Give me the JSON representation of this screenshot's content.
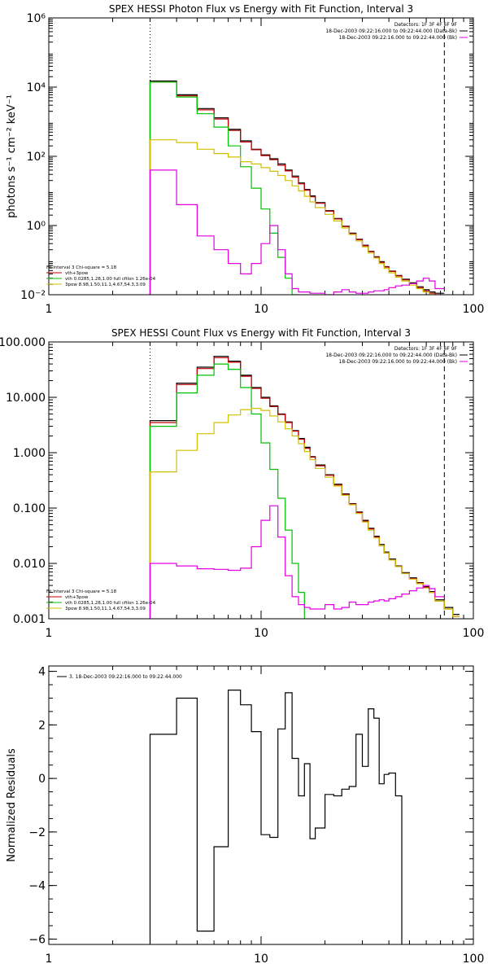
{
  "chart_data": [
    {
      "type": "line",
      "title": "SPEX HESSI Photon Flux vs Energy with Fit Function, Interval 3",
      "xlabel": "",
      "ylabel": "photons s⁻¹ cm⁻² keV⁻¹",
      "xscale": "log",
      "yscale": "log",
      "xlim": [
        1,
        100
      ],
      "ylim": [
        0.01,
        1000000
      ],
      "xticks": [
        {
          "v": 1,
          "label": "1"
        },
        {
          "v": 10,
          "label": "10"
        },
        {
          "v": 100,
          "label": "100"
        }
      ],
      "yticks": [
        {
          "v": 0.01,
          "label": "10⁻²"
        },
        {
          "v": 1,
          "label": "10⁰"
        },
        {
          "v": 100,
          "label": "10²"
        },
        {
          "v": 10000,
          "label": "10⁴"
        },
        {
          "v": 1000000,
          "label": "10⁶"
        }
      ],
      "vlines": [
        {
          "x": 3,
          "style": "dotted"
        },
        {
          "x": 73,
          "style": "dashed"
        }
      ],
      "legend": {
        "position": "top-right",
        "lines": [
          {
            "text": "Detectors: 1F 3F 4F 6F 9F",
            "color": ""
          },
          {
            "text": "18-Dec-2003 09:22:16.000 to 09:22:44.000 (Data-Bk)",
            "color": "#000000"
          },
          {
            "text": "18-Dec-2003 09:22:16.000 to 09:22:44.000 (Bk)",
            "color": "#e000e0"
          }
        ]
      },
      "fit_legend": {
        "position": "bottom-left",
        "lines": [
          {
            "text": "Fit Interval 3   Chi-square = 5.18",
            "color": ""
          },
          {
            "text": "vth+3pow",
            "color": "#c00000"
          },
          {
            "text": "vth 0.0285,1.28,1.00  full cfilon 1.26e-04",
            "color": "#00c000"
          },
          {
            "text": "3pow  8.98,1.50,11.1,4.67,54.3,3.09",
            "color": "#d0c000"
          }
        ]
      },
      "edges": [
        3,
        4,
        5,
        6,
        7,
        8,
        9,
        10,
        11,
        12,
        13,
        14,
        15,
        16,
        17,
        18,
        20,
        22,
        24,
        26,
        28,
        30,
        32,
        34,
        36,
        38,
        40,
        43,
        46,
        50,
        54,
        58,
        62,
        66,
        73,
        80,
        86
      ],
      "series": [
        {
          "name": "Data-Bk",
          "color": "#000000",
          "values": [
            15000,
            6000,
            2400,
            1300,
            600,
            280,
            160,
            110,
            85,
            60,
            40,
            27,
            17,
            11,
            7.2,
            4.6,
            2.7,
            1.6,
            0.95,
            0.6,
            0.4,
            0.27,
            0.18,
            0.125,
            0.09,
            0.065,
            0.048,
            0.036,
            0.028,
            0.022,
            0.017,
            0.014,
            0.012,
            0.011
          ]
        },
        {
          "name": "vth+3pow",
          "color": "#c00000",
          "values": [
            14000,
            5600,
            2200,
            1200,
            560,
            260,
            155,
            105,
            80,
            55,
            38,
            25,
            16,
            10.5,
            6.8,
            4.4,
            2.6,
            1.55,
            0.93,
            0.58,
            0.39,
            0.26,
            0.175,
            0.12,
            0.086,
            0.063,
            0.047,
            0.035,
            0.027,
            0.021,
            0.016,
            0.013,
            0.011,
            0.01
          ]
        },
        {
          "name": "vth",
          "color": "#00c000",
          "values": [
            14000,
            5200,
            1700,
            700,
            200,
            50,
            12,
            3,
            0.6,
            0.12,
            0.03,
            0.01
          ]
        },
        {
          "name": "3pow",
          "color": "#d0c000",
          "values": [
            300,
            250,
            160,
            120,
            95,
            70,
            60,
            47,
            37,
            28,
            20,
            14,
            10,
            7.0,
            4.8,
            3.3,
            2.1,
            1.35,
            0.85,
            0.55,
            0.36,
            0.24,
            0.16,
            0.115,
            0.08,
            0.058,
            0.043,
            0.032,
            0.025,
            0.019,
            0.015,
            0.012,
            0.01,
            0.008,
            0.006,
            0.005
          ]
        },
        {
          "name": "Bk",
          "color": "#e000e0",
          "values": [
            40,
            4,
            0.5,
            0.2,
            0.08,
            0.04,
            0.08,
            0.3,
            1.0,
            0.2,
            0.04,
            0.015,
            0.012,
            0.012,
            0.011,
            0.011,
            0.01,
            0.012,
            0.014,
            0.012,
            0.011,
            0.011,
            0.012,
            0.013,
            0.013,
            0.014,
            0.016,
            0.018,
            0.019,
            0.021,
            0.025,
            0.03,
            0.025,
            0.015
          ]
        }
      ]
    },
    {
      "type": "line",
      "title": "SPEX HESSI Count Flux vs Energy with Fit Function, Interval 3",
      "xlabel": "",
      "ylabel": "",
      "xscale": "log",
      "yscale": "log",
      "xlim": [
        1,
        100
      ],
      "ylim": [
        0.001,
        100
      ],
      "xticks": [
        {
          "v": 1,
          "label": "1"
        },
        {
          "v": 10,
          "label": "10"
        },
        {
          "v": 100,
          "label": "100"
        }
      ],
      "yticks": [
        {
          "v": 0.001,
          "label": "0.001"
        },
        {
          "v": 0.01,
          "label": "0.010"
        },
        {
          "v": 0.1,
          "label": "0.100"
        },
        {
          "v": 1,
          "label": "1.000"
        },
        {
          "v": 10,
          "label": "10.000"
        },
        {
          "v": 100,
          "label": "100.000"
        }
      ],
      "vlines": [
        {
          "x": 3,
          "style": "dotted"
        },
        {
          "x": 73,
          "style": "dashed"
        }
      ],
      "legend": {
        "position": "top-right",
        "lines": [
          {
            "text": "Detectors: 1F 3F 4F 6F 9F",
            "color": ""
          },
          {
            "text": "18-Dec-2003 09:22:16.000 to 09:22:44.000 (Data-Bk)",
            "color": "#000000"
          },
          {
            "text": "18-Dec-2003 09:22:16.000 to 09:22:44.000 (Bk)",
            "color": "#e000e0"
          }
        ]
      },
      "fit_legend": {
        "position": "bottom-left",
        "lines": [
          {
            "text": "Fit Interval 3   Chi-square = 5.18",
            "color": ""
          },
          {
            "text": "vth+3pow",
            "color": "#c00000"
          },
          {
            "text": "vth 0.0285,1.28,1.00  full cfilon 1.26e-04",
            "color": "#00c000"
          },
          {
            "text": "3pow  8.98,1.50,11.1,4.67,54.3,3.09",
            "color": "#d0c000"
          }
        ]
      },
      "edges": [
        3,
        4,
        5,
        6,
        7,
        8,
        9,
        10,
        11,
        12,
        13,
        14,
        15,
        16,
        17,
        18,
        20,
        22,
        24,
        26,
        28,
        30,
        32,
        34,
        36,
        38,
        40,
        43,
        46,
        50,
        54,
        58,
        62,
        66,
        73,
        80,
        86
      ],
      "series": [
        {
          "name": "Data-Bk",
          "color": "#000000",
          "values": [
            3.8,
            18,
            35,
            55,
            45,
            25,
            15,
            10,
            7.0,
            5.0,
            3.6,
            2.5,
            1.8,
            1.25,
            0.85,
            0.6,
            0.4,
            0.27,
            0.18,
            0.12,
            0.085,
            0.06,
            0.043,
            0.031,
            0.022,
            0.016,
            0.012,
            0.009,
            0.0068,
            0.0055,
            0.0045,
            0.0038,
            0.0031,
            0.0022,
            0.0016,
            0.0012
          ]
        },
        {
          "name": "vth+3pow",
          "color": "#c00000",
          "values": [
            3.5,
            17,
            33,
            52,
            43,
            24,
            14.5,
            9.6,
            6.8,
            4.9,
            3.5,
            2.45,
            1.75,
            1.2,
            0.83,
            0.58,
            0.39,
            0.26,
            0.175,
            0.118,
            0.083,
            0.058,
            0.042,
            0.03,
            0.021,
            0.0155,
            0.0115,
            0.0088,
            0.0066,
            0.0053,
            0.0044,
            0.0037,
            0.003,
            0.0021,
            0.0015,
            0.0011
          ]
        },
        {
          "name": "vth",
          "color": "#00c000",
          "values": [
            3.0,
            12,
            25,
            40,
            32,
            15,
            5.0,
            1.5,
            0.5,
            0.15,
            0.04,
            0.01,
            0.003,
            0.0009
          ]
        },
        {
          "name": "3pow",
          "color": "#d0c000",
          "values": [
            0.45,
            1.1,
            2.2,
            3.5,
            4.8,
            6.0,
            6.3,
            5.8,
            4.6,
            3.6,
            2.7,
            2.0,
            1.45,
            1.05,
            0.75,
            0.52,
            0.36,
            0.25,
            0.17,
            0.115,
            0.08,
            0.056,
            0.04,
            0.029,
            0.021,
            0.0155,
            0.0115,
            0.0088,
            0.0066,
            0.0052,
            0.0043,
            0.0036,
            0.003,
            0.0021,
            0.0015,
            0.0011
          ]
        },
        {
          "name": "Bk",
          "color": "#e000e0",
          "values": [
            0.01,
            0.009,
            0.008,
            0.0078,
            0.0075,
            0.0082,
            0.02,
            0.06,
            0.11,
            0.03,
            0.006,
            0.0025,
            0.0018,
            0.0016,
            0.0015,
            0.0015,
            0.0018,
            0.0015,
            0.0016,
            0.002,
            0.0018,
            0.0018,
            0.002,
            0.0021,
            0.0022,
            0.0021,
            0.0023,
            0.0025,
            0.0028,
            0.0032,
            0.0036,
            0.004,
            0.0035,
            0.0025
          ]
        }
      ]
    },
    {
      "type": "line",
      "title": "",
      "xlabel": "",
      "ylabel": "Normalized Residuals",
      "xscale": "log",
      "yscale": "linear",
      "xlim": [
        1,
        100
      ],
      "ylim": [
        -6.2,
        4.2
      ],
      "xticks": [
        {
          "v": 1,
          "label": "1"
        },
        {
          "v": 10,
          "label": "10"
        },
        {
          "v": 100,
          "label": "100"
        }
      ],
      "yticks": [
        {
          "v": -6,
          "label": "−6"
        },
        {
          "v": -4,
          "label": "−4"
        },
        {
          "v": -2,
          "label": "−2"
        },
        {
          "v": 0,
          "label": "0"
        },
        {
          "v": 2,
          "label": "2"
        },
        {
          "v": 4,
          "label": "4"
        }
      ],
      "legend": {
        "position": "top-left",
        "lines": [
          {
            "text": "3. 18-Dec-2003 09:22:16.000 to 09:22:44.000",
            "color": "#000000"
          }
        ]
      },
      "edges": [
        3,
        4,
        5,
        6,
        7,
        8,
        9,
        10,
        11,
        12,
        13,
        14,
        15,
        16,
        17,
        18,
        20,
        22,
        24,
        26,
        28,
        30,
        32,
        34,
        36,
        38,
        40,
        43,
        46,
        50,
        54,
        58,
        62,
        66,
        73
      ],
      "series": [
        {
          "name": "3. 18-Dec-2003 09:22:16.000 to 09:22:44.000",
          "color": "#000000",
          "values": [
            1.65,
            3.0,
            -5.7,
            -2.55,
            3.3,
            2.75,
            1.75,
            -2.1,
            -2.2,
            1.85,
            3.2,
            0.75,
            -0.65,
            0.55,
            -2.25,
            -1.85,
            -0.6,
            -0.65,
            -0.4,
            -0.3,
            1.65,
            0.45,
            2.6,
            2.25,
            -0.2,
            0.15,
            0.2,
            -0.65
          ]
        }
      ]
    }
  ]
}
